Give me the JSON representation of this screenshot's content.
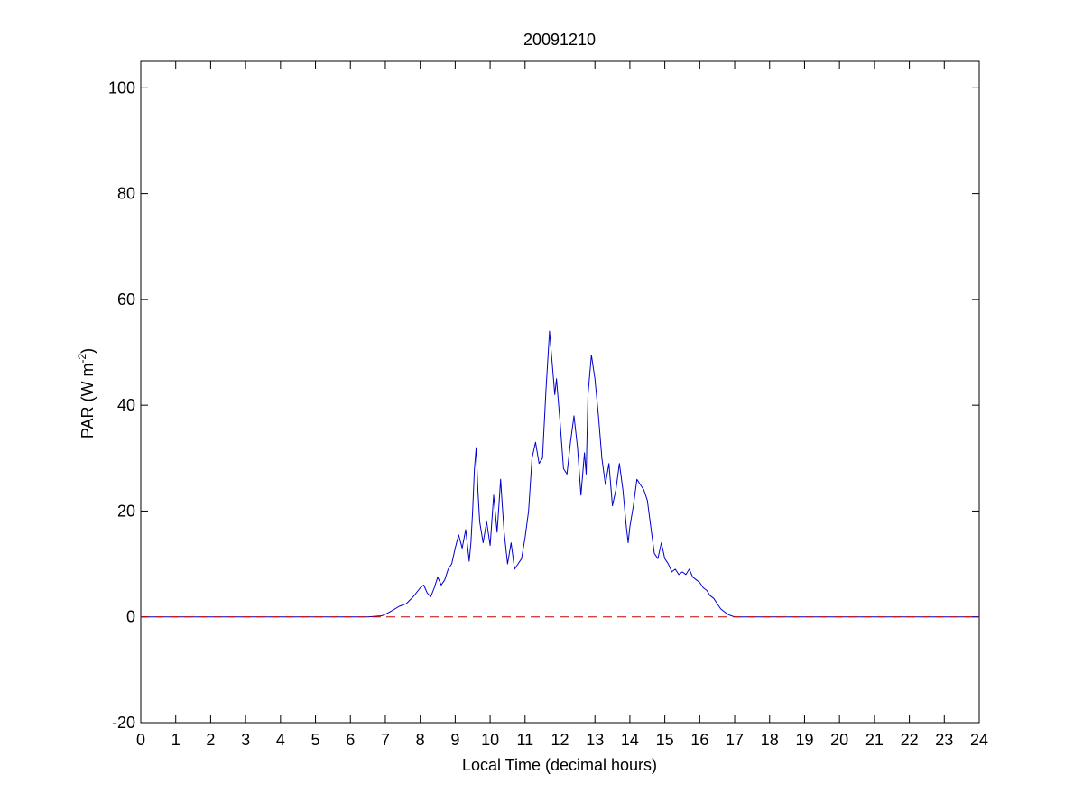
{
  "chart_data": {
    "type": "line",
    "title": "20091210",
    "xlabel": "Local Time (decimal hours)",
    "ylabel": {
      "main": "PAR (W m",
      "superscript": "-2",
      "close": ")"
    },
    "xlim": [
      0,
      24
    ],
    "ylim": [
      -20,
      105
    ],
    "x_ticks": [
      0,
      1,
      2,
      3,
      4,
      5,
      6,
      7,
      8,
      9,
      10,
      11,
      12,
      13,
      14,
      15,
      16,
      17,
      18,
      19,
      20,
      21,
      22,
      23,
      24
    ],
    "y_ticks": [
      -20,
      0,
      20,
      40,
      60,
      80,
      100
    ],
    "grid": false,
    "series": [
      {
        "color": "#0000cc",
        "style": "solid",
        "points": [
          [
            0,
            0
          ],
          [
            6.5,
            0
          ],
          [
            6.9,
            0.2
          ],
          [
            7.0,
            0.5
          ],
          [
            7.2,
            1.2
          ],
          [
            7.4,
            2
          ],
          [
            7.6,
            2.5
          ],
          [
            7.8,
            3.8
          ],
          [
            8.0,
            5.5
          ],
          [
            8.1,
            6
          ],
          [
            8.2,
            4.5
          ],
          [
            8.3,
            3.8
          ],
          [
            8.4,
            5.5
          ],
          [
            8.5,
            7.5
          ],
          [
            8.6,
            6
          ],
          [
            8.7,
            7
          ],
          [
            8.8,
            9
          ],
          [
            8.9,
            10
          ],
          [
            9.0,
            13
          ],
          [
            9.1,
            15.5
          ],
          [
            9.2,
            13
          ],
          [
            9.3,
            16.5
          ],
          [
            9.4,
            10.5
          ],
          [
            9.45,
            14
          ],
          [
            9.5,
            20
          ],
          [
            9.55,
            28
          ],
          [
            9.6,
            32
          ],
          [
            9.65,
            24
          ],
          [
            9.7,
            18
          ],
          [
            9.8,
            14
          ],
          [
            9.9,
            18
          ],
          [
            10.0,
            13.5
          ],
          [
            10.1,
            23
          ],
          [
            10.2,
            16
          ],
          [
            10.25,
            21
          ],
          [
            10.3,
            26
          ],
          [
            10.35,
            21
          ],
          [
            10.4,
            16
          ],
          [
            10.5,
            10
          ],
          [
            10.6,
            14
          ],
          [
            10.7,
            9
          ],
          [
            10.8,
            10
          ],
          [
            10.9,
            11
          ],
          [
            11.0,
            15
          ],
          [
            11.1,
            20
          ],
          [
            11.2,
            30
          ],
          [
            11.3,
            33
          ],
          [
            11.4,
            29
          ],
          [
            11.5,
            30
          ],
          [
            11.6,
            43
          ],
          [
            11.7,
            54
          ],
          [
            11.75,
            50
          ],
          [
            11.8,
            46
          ],
          [
            11.85,
            42
          ],
          [
            11.9,
            45
          ],
          [
            12.0,
            37
          ],
          [
            12.1,
            28
          ],
          [
            12.2,
            27
          ],
          [
            12.3,
            33
          ],
          [
            12.4,
            38
          ],
          [
            12.5,
            32
          ],
          [
            12.6,
            23
          ],
          [
            12.7,
            31
          ],
          [
            12.75,
            27
          ],
          [
            12.8,
            42
          ],
          [
            12.9,
            49.5
          ],
          [
            13.0,
            45
          ],
          [
            13.1,
            38
          ],
          [
            13.2,
            30
          ],
          [
            13.3,
            25
          ],
          [
            13.4,
            29
          ],
          [
            13.5,
            21
          ],
          [
            13.6,
            24
          ],
          [
            13.7,
            29
          ],
          [
            13.8,
            24
          ],
          [
            13.9,
            17
          ],
          [
            13.95,
            14
          ],
          [
            14.0,
            17
          ],
          [
            14.1,
            21
          ],
          [
            14.2,
            26
          ],
          [
            14.3,
            25
          ],
          [
            14.4,
            24
          ],
          [
            14.5,
            22
          ],
          [
            14.6,
            17
          ],
          [
            14.7,
            12
          ],
          [
            14.8,
            11
          ],
          [
            14.9,
            14
          ],
          [
            15.0,
            11
          ],
          [
            15.1,
            10
          ],
          [
            15.2,
            8.5
          ],
          [
            15.3,
            9
          ],
          [
            15.4,
            8
          ],
          [
            15.5,
            8.5
          ],
          [
            15.6,
            8
          ],
          [
            15.7,
            9
          ],
          [
            15.8,
            7.5
          ],
          [
            15.9,
            7
          ],
          [
            16.0,
            6.5
          ],
          [
            16.1,
            5.5
          ],
          [
            16.2,
            5
          ],
          [
            16.3,
            4
          ],
          [
            16.4,
            3.5
          ],
          [
            16.5,
            2.5
          ],
          [
            16.6,
            1.5
          ],
          [
            16.7,
            1
          ],
          [
            16.8,
            0.5
          ],
          [
            16.9,
            0.2
          ],
          [
            17.0,
            0
          ],
          [
            17.3,
            0
          ],
          [
            24,
            0
          ]
        ]
      },
      {
        "color": "#cc0000",
        "style": "dashed",
        "points": [
          [
            0,
            0
          ],
          [
            24,
            0
          ]
        ]
      }
    ]
  }
}
